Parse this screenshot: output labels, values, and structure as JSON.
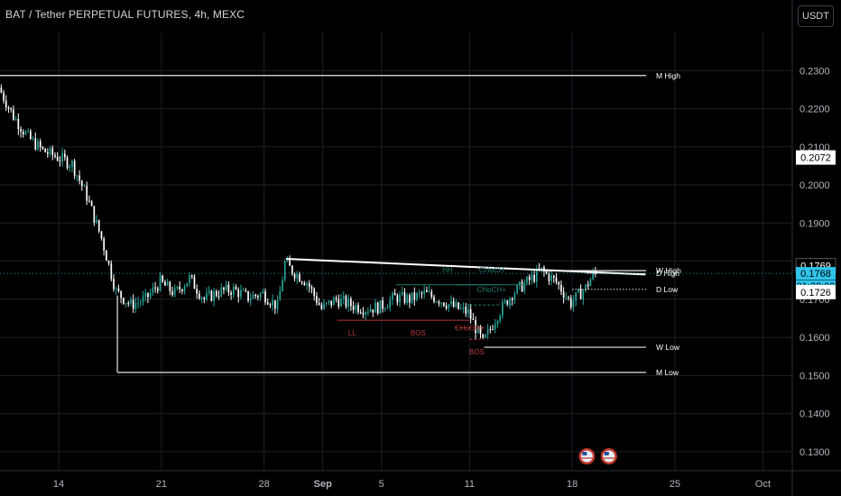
{
  "header": {
    "title": "BAT / Tether PERPETUAL FUTURES, 4h, MEXC",
    "currency": "USDT"
  },
  "colors": {
    "up": "#26a69a",
    "down": "#ffffff",
    "grid": "#1c1f26",
    "axis_text": "#b2b5be",
    "choch_green": "#1f7a6c",
    "bos_red": "#b23b3b",
    "price_badge": "#2ec4ec"
  },
  "chart_data": {
    "type": "candlestick",
    "title": "BAT / Tether PERPETUAL FUTURES, 4h, MEXC",
    "ylim": [
      0.125,
      0.24
    ],
    "y_ticks": [
      0.13,
      0.14,
      0.15,
      0.16,
      0.17,
      0.18,
      0.19,
      0.2,
      0.21,
      0.22,
      0.23
    ],
    "y_tick_labels": [
      "0.1300",
      "0.1400",
      "0.1500",
      "0.1600",
      "0.1700",
      "0.1800",
      "0.1900",
      "0.2000",
      "0.2100",
      "0.2200",
      "0.2300"
    ],
    "x_range": [
      "2023-08-10",
      "2023-10-03"
    ],
    "x_ticks": [
      {
        "date": "2023-08-14",
        "label": "14"
      },
      {
        "date": "2023-08-21",
        "label": "21"
      },
      {
        "date": "2023-08-28",
        "label": "28"
      },
      {
        "date": "2023-09-01",
        "label": "Sep"
      },
      {
        "date": "2023-09-05",
        "label": "5"
      },
      {
        "date": "2023-09-11",
        "label": "11"
      },
      {
        "date": "2023-09-18",
        "label": "18"
      },
      {
        "date": "2023-09-25",
        "label": "25"
      },
      {
        "date": "2023-10-01",
        "label": "Oct"
      }
    ],
    "path_anchors": [
      [
        "2023-08-10",
        0.2255
      ],
      [
        "2023-08-11",
        0.218
      ],
      [
        "2023-08-12",
        0.2125
      ],
      [
        "2023-08-13",
        0.209
      ],
      [
        "2023-08-15",
        0.2055
      ],
      [
        "2023-08-16",
        0.197
      ],
      [
        "2023-08-17",
        0.186
      ],
      [
        "2023-08-18",
        0.172
      ],
      [
        "2023-08-19",
        0.1685
      ],
      [
        "2023-08-20",
        0.17
      ],
      [
        "2023-08-21",
        0.1745
      ],
      [
        "2023-08-22",
        0.1715
      ],
      [
        "2023-08-23",
        0.1755
      ],
      [
        "2023-08-24",
        0.17
      ],
      [
        "2023-08-25",
        0.172
      ],
      [
        "2023-08-26",
        0.1725
      ],
      [
        "2023-08-27",
        0.1705
      ],
      [
        "2023-08-28",
        0.1715
      ],
      [
        "2023-08-29",
        0.168
      ],
      [
        "2023-08-29T12:00",
        0.1795
      ],
      [
        "2023-08-30",
        0.1775
      ],
      [
        "2023-08-31",
        0.1745
      ],
      [
        "2023-09-01",
        0.1675
      ],
      [
        "2023-09-02",
        0.17
      ],
      [
        "2023-09-03",
        0.1685
      ],
      [
        "2023-09-04",
        0.1675
      ],
      [
        "2023-09-05",
        0.168
      ],
      [
        "2023-09-06",
        0.1705
      ],
      [
        "2023-09-07",
        0.17
      ],
      [
        "2023-09-08",
        0.1715
      ],
      [
        "2023-09-09",
        0.17
      ],
      [
        "2023-09-10",
        0.168
      ],
      [
        "2023-09-11",
        0.1665
      ],
      [
        "2023-09-12",
        0.1585
      ],
      [
        "2023-09-13",
        0.166
      ],
      [
        "2023-09-14",
        0.1715
      ],
      [
        "2023-09-15",
        0.1745
      ],
      [
        "2023-09-16",
        0.1775
      ],
      [
        "2023-09-17",
        0.1745
      ],
      [
        "2023-09-18",
        0.169
      ],
      [
        "2023-09-19",
        0.173
      ],
      [
        "2023-09-19T12:00",
        0.1765
      ]
    ],
    "levels": [
      {
        "name": "M High",
        "value": 0.2287,
        "from": "2023-08-10"
      },
      {
        "name": "W High",
        "value": 0.1775,
        "from": "2023-09-16"
      },
      {
        "name": "D High",
        "value": 0.1768,
        "from": "2023-09-19"
      },
      {
        "name": "D Low",
        "value": 0.1726,
        "from": "2023-09-18"
      },
      {
        "name": "W Low",
        "value": 0.1574,
        "from": "2023-09-12"
      },
      {
        "name": "M Low",
        "value": 0.1508,
        "from": "2023-08-18"
      }
    ],
    "trendline": {
      "from": [
        "2023-08-29T12:00",
        0.1806
      ],
      "to": [
        "2023-09-23",
        0.1765
      ]
    },
    "structure": [
      {
        "label": "HH",
        "type": "green",
        "value": 0.1738,
        "from": "2023-09-06",
        "to": "2023-09-13"
      },
      {
        "label": "CHoCH",
        "type": "green",
        "value": 0.1738,
        "from": "2023-09-10",
        "to": "2023-09-15"
      },
      {
        "label": "CHoCH+",
        "type": "green",
        "value": 0.1685,
        "from": "2023-09-11",
        "to": "2023-09-14"
      },
      {
        "label": "LL",
        "type": "red",
        "value": 0.1645,
        "from": "2023-09-02",
        "to": "2023-09-04"
      },
      {
        "label": "BOS",
        "type": "red",
        "value": 0.1645,
        "from": "2023-09-04",
        "to": "2023-09-11"
      },
      {
        "label": "CHoCH+",
        "type": "red",
        "value": 0.1625,
        "from": "2023-09-10",
        "to": "2023-09-12"
      },
      {
        "label": "BOS",
        "type": "red",
        "value": 0.1595,
        "from": "2023-09-11",
        "to": "2023-09-12"
      }
    ],
    "price_badges": [
      {
        "text": "0.2072",
        "value": 0.2072,
        "style": "white"
      },
      {
        "text": "0.1769",
        "value": 0.1769,
        "style": "dark"
      },
      {
        "text": "0.1768",
        "value": 0.1768,
        "style": "cyan"
      },
      {
        "text": "01:32:00",
        "value": 0.1768,
        "style": "cyan-sub"
      },
      {
        "text": "0.1726",
        "value": 0.1726,
        "style": "white"
      }
    ],
    "current_price": 0.1768,
    "event_icons": [
      "2023-09-19",
      "2023-09-20T12:00"
    ],
    "grid": true
  }
}
